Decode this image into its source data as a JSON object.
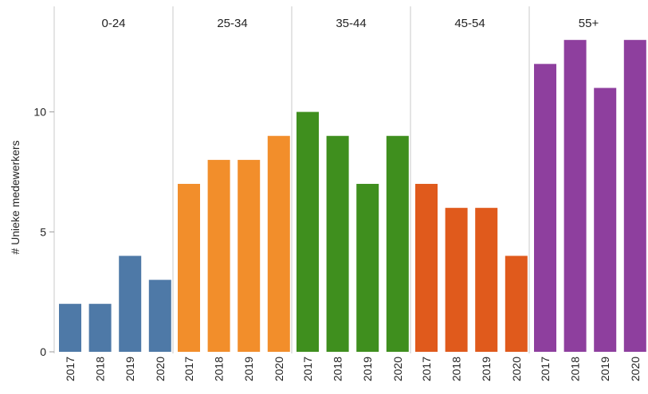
{
  "chart_data": {
    "type": "bar",
    "ylabel": "# Unieke medewerkers",
    "ylim": [
      0,
      14.2
    ],
    "yticks": [
      0,
      5,
      10
    ],
    "grid": false,
    "legend": "none",
    "panels": [
      {
        "name": "0-24",
        "color": "#4e79a7",
        "categories": [
          "2017",
          "2018",
          "2019",
          "2020"
        ],
        "values": [
          2,
          2,
          4,
          3
        ]
      },
      {
        "name": "25-34",
        "color": "#f28e2b",
        "categories": [
          "2017",
          "2018",
          "2019",
          "2020"
        ],
        "values": [
          7,
          8,
          8,
          9
        ]
      },
      {
        "name": "35-44",
        "color": "#3f8f1e",
        "categories": [
          "2017",
          "2018",
          "2019",
          "2020"
        ],
        "values": [
          10,
          9,
          7,
          9
        ]
      },
      {
        "name": "45-54",
        "color": "#e05a1c",
        "categories": [
          "2017",
          "2018",
          "2019",
          "2020"
        ],
        "values": [
          7,
          6,
          6,
          4
        ]
      },
      {
        "name": "55+",
        "color": "#8e3f9e",
        "categories": [
          "2017",
          "2018",
          "2019",
          "2020"
        ],
        "values": [
          12,
          13,
          11,
          13
        ]
      }
    ]
  }
}
